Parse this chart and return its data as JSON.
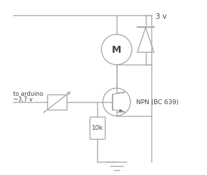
{
  "bg_color": "#ffffff",
  "wire_color": "#aaaaaa",
  "component_color": "#aaaaaa",
  "text_color": "#444444",
  "arrow_color": "#111111",
  "power_label": "3 v",
  "arduino_label1": "to arduino",
  "arduino_label2": "~3,7 v",
  "resistor_label": "10k",
  "transistor_label": "NPN (BC 639)"
}
